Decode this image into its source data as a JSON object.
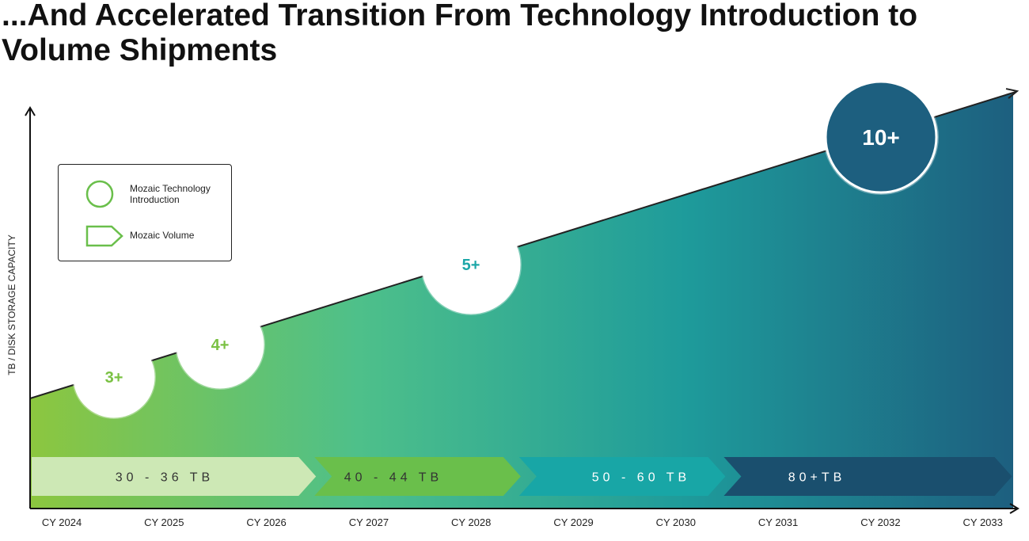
{
  "title": "...And Accelerated Transition From Technology Introduction to Volume Shipments",
  "chart_data": {
    "type": "area",
    "ylabel": "TB / DISK STORAGE CAPACITY",
    "categories": [
      "CY 2024",
      "CY 2025",
      "CY 2026",
      "CY 2027",
      "CY 2028",
      "CY 2029",
      "CY 2030",
      "CY 2031",
      "CY 2032",
      "CY 2033"
    ],
    "legend": {
      "placement": "top-left",
      "items": [
        {
          "label": "Mozaic Technology Introduction",
          "shape": "circle"
        },
        {
          "label": "Mozaic Volume",
          "shape": "pentagon-arrow"
        }
      ]
    },
    "technology_introduction": [
      {
        "label": "3+",
        "tb": 3,
        "year": 2024.5
      },
      {
        "label": "4+",
        "tb": 4,
        "year": 2025.5
      },
      {
        "label": "5+",
        "tb": 5,
        "year": 2028.0
      },
      {
        "label": "10+",
        "tb": 10,
        "year": 2032.0
      }
    ],
    "volume_shipments": [
      {
        "label": "30-36 TB",
        "start": 2024,
        "end": 2026.5
      },
      {
        "label": "40-44 TB",
        "start": 2026.5,
        "end": 2028.5
      },
      {
        "label": "50-60 TB",
        "start": 2028.5,
        "end": 2030.5
      },
      {
        "label": "80+TB",
        "start": 2030.5,
        "end": 2033.3
      }
    ],
    "colors": {
      "gradient": [
        "#8cc63f",
        "#4ec08a",
        "#1e9b9b",
        "#1d5f7f"
      ],
      "volume_arrows": [
        "#cde8b5",
        "#6abf4b",
        "#18a6a6",
        "#1a4f6e"
      ],
      "volume_text": [
        "#333333",
        "#333333",
        "#ffffff",
        "#ffffff"
      ],
      "bubble_text": [
        "#7ac143",
        "#7ac143",
        "#1ca7a8",
        "#ffffff"
      ],
      "bubble_fill": [
        "#ffffff",
        "#ffffff",
        "#ffffff",
        "#1d5f7f"
      ],
      "legend_green": "#6abf4b",
      "axis": "#111111"
    }
  }
}
